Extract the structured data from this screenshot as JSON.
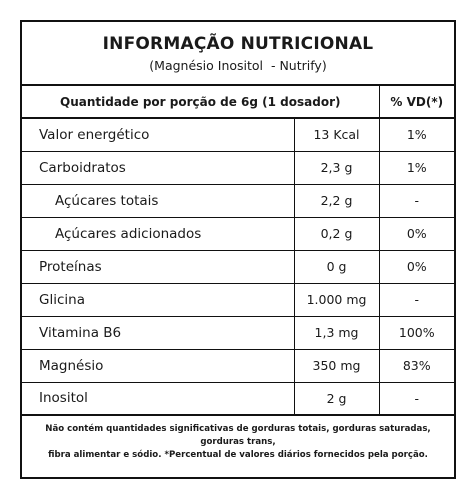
{
  "header": {
    "title": "INFORMAÇÃO NUTRICIONAL",
    "subtitle": "(Magnésio Inositol  - Nutrify)"
  },
  "table": {
    "portion_header": "Quantidade por porção de 6g (1 dosador)",
    "vd_header": "% VD(*)",
    "rows": [
      {
        "name": "Valor energético",
        "amount": "13 Kcal",
        "vd": "1%"
      },
      {
        "name": "Carboidratos",
        "amount": "2,3 g",
        "vd": "1%"
      },
      {
        "name": "Açúcares totais",
        "amount": "2,2 g",
        "vd": "-"
      },
      {
        "name": "Açúcares adicionados",
        "amount": "0,2 g",
        "vd": "0%"
      },
      {
        "name": "Proteínas",
        "amount": "0 g",
        "vd": "0%"
      },
      {
        "name": "Glicina",
        "amount": "1.000 mg",
        "vd": "-"
      },
      {
        "name": "Vitamina B6",
        "amount": "1,3 mg",
        "vd": "100%"
      },
      {
        "name": "Magnésio",
        "amount": "350 mg",
        "vd": "83%"
      },
      {
        "name": "Inositol",
        "amount": "2 g",
        "vd": "-"
      }
    ]
  },
  "footnote": {
    "line1": "Não contém quantidades significativas de gorduras totais, gorduras saturadas, gorduras trans,",
    "line2": "fibra alimentar e sódio. *Percentual de valores diários fornecidos pela porção."
  }
}
